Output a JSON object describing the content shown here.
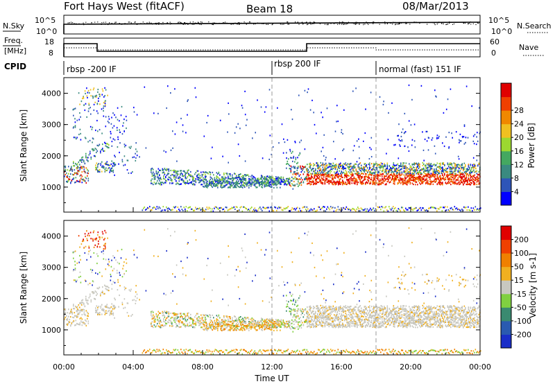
{
  "header": {
    "title": "Fort Hays West (fitACF)",
    "beam": "Beam 18",
    "date": "08/Mar/2013"
  },
  "top_panels": {
    "nsky_label": "N.Sky",
    "nsky_ticks": [
      "10^5",
      "10^0"
    ],
    "nsearch_label": "N.Search",
    "nsearch_ticks": [
      "10^5",
      "10^0"
    ],
    "freq_label_1": "Freq.",
    "freq_label_2": "[MHz]",
    "freq_ticks": [
      "18",
      "8"
    ],
    "nave_label": "Nave",
    "nave_ticks": [
      "60",
      "0"
    ],
    "cpid_label": "CPID",
    "cpid_segments": [
      {
        "label": "rbsp -200 IF",
        "start_hour": 0
      },
      {
        "label": "rbsp 200 IF",
        "start_hour": 12
      },
      {
        "label": "normal (fast) 151 IF",
        "start_hour": 18
      }
    ]
  },
  "chart_data": [
    {
      "type": "heatmap",
      "name": "power",
      "ylabel": "Slant Range [km]",
      "ylim": [
        200,
        4500
      ],
      "yticks": [
        "1000",
        "2000",
        "3000",
        "4000"
      ],
      "xlim_hours": [
        0,
        24
      ],
      "colorbar_label": "Power [dB]",
      "colorbar_ticks": [
        "4",
        "8",
        "12",
        "16",
        "20",
        "24",
        "28"
      ],
      "colorbar_colors": [
        "#0000ff",
        "#2e55b8",
        "#3a8a80",
        "#44a860",
        "#9cd830",
        "#f0c020",
        "#f08800",
        "#f04000",
        "#e00000"
      ]
    },
    {
      "type": "heatmap",
      "name": "velocity",
      "ylabel": "Slant Range [km]",
      "ylim": [
        200,
        4500
      ],
      "yticks": [
        "1000",
        "2000",
        "3000",
        "4000"
      ],
      "xlim_hours": [
        0,
        24
      ],
      "colorbar_label": "Velocity [m s-1]",
      "colorbar_ticks": [
        "200",
        "100",
        "50",
        "15",
        "-15",
        "-50",
        "-100",
        "-200"
      ],
      "colorbar_colors": [
        "#1a2ec8",
        "#2a5ab0",
        "#3a8a70",
        "#80d040",
        "#c8c8c0",
        "#f0b020",
        "#f08000",
        "#f04000",
        "#e00000"
      ]
    }
  ],
  "x_axis": {
    "ticks": [
      "00:00",
      "04:00",
      "08:00",
      "12:00",
      "16:00",
      "20:00",
      "00:00"
    ],
    "label": "Time UT"
  }
}
